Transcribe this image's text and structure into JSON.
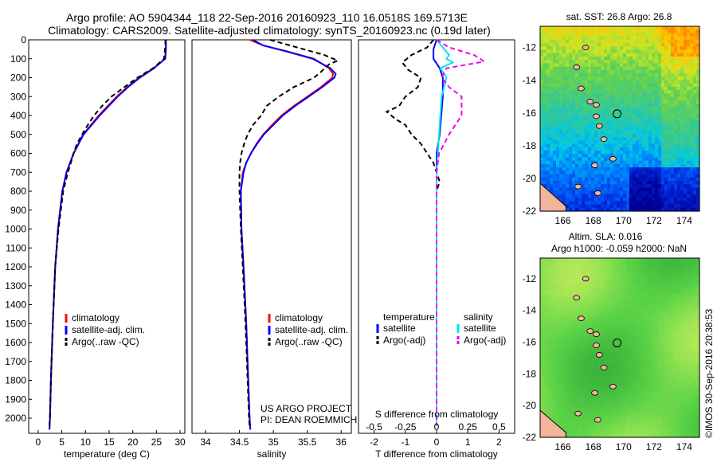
{
  "title": {
    "line1": "Argo profile: AO 5904344_118 22-Sep-2016 20160923_110 16.0518S 169.5713E",
    "line2": "Climatology: CARS2009. Satellite-adjusted climatology: synTS_20160923.nc (0.19d later)"
  },
  "colors": {
    "climatology": "#ff0000",
    "satellite": "#0000ff",
    "argo": "#000000",
    "sat_salinity": "#00e5ee",
    "argo_salinity": "#ee00ee",
    "land": "#f2b49a"
  },
  "chart_data": [
    {
      "type": "line",
      "id": "temperature",
      "xlabel": "temperature (deg C)",
      "ylabel": "",
      "xlim": [
        -2,
        31
      ],
      "ylim": [
        2080,
        0
      ],
      "xticks": [
        0,
        5,
        10,
        15,
        20,
        25,
        30
      ],
      "yticks": [
        0,
        100,
        200,
        300,
        400,
        500,
        600,
        700,
        800,
        900,
        1000,
        1100,
        1200,
        1300,
        1400,
        1500,
        1600,
        1700,
        1800,
        1900,
        2000
      ],
      "legend": [
        "climatology",
        "satellite-adj. clim.",
        "Argo(..raw -QC)"
      ],
      "series": [
        {
          "name": "climatology",
          "depth": [
            0,
            50,
            100,
            150,
            200,
            250,
            300,
            400,
            500,
            600,
            700,
            800,
            1000,
            1200,
            1500,
            1800,
            2000,
            2060
          ],
          "values": [
            27.0,
            27.0,
            26.9,
            24.4,
            21.3,
            18.8,
            16.6,
            12.8,
            9.5,
            7.5,
            6.0,
            5.1,
            4.2,
            3.6,
            3.1,
            2.7,
            2.5,
            2.4
          ]
        },
        {
          "name": "satellite-adj. clim.",
          "depth": [
            0,
            50,
            100,
            150,
            200,
            250,
            300,
            400,
            500,
            600,
            700,
            800,
            1000,
            1200,
            1500,
            1800,
            2000,
            2060
          ],
          "values": [
            27.0,
            27.0,
            26.8,
            24.5,
            21.5,
            19.0,
            16.8,
            13.0,
            9.6,
            7.5,
            6.0,
            5.1,
            4.2,
            3.6,
            3.1,
            2.7,
            2.5,
            2.4
          ]
        },
        {
          "name": "Argo(..raw -QC)",
          "depth": [
            0,
            30,
            100,
            150,
            200,
            250,
            300,
            350,
            400,
            450,
            500,
            550,
            600,
            650,
            700,
            800,
            1000,
            1200,
            1500,
            1800,
            2000,
            2040
          ],
          "values": [
            26.9,
            26.9,
            26.6,
            24.3,
            21.0,
            18.2,
            15.5,
            13.5,
            11.8,
            10.5,
            9.3,
            8.2,
            7.5,
            6.9,
            6.3,
            5.3,
            4.3,
            3.6,
            3.1,
            2.7,
            2.5,
            2.4
          ]
        }
      ]
    },
    {
      "type": "line",
      "id": "salinity",
      "xlabel": "salinity",
      "ylabel": "",
      "xlim": [
        33.8,
        36.15
      ],
      "ylim": [
        2080,
        0
      ],
      "xticks": [
        34,
        34.5,
        35,
        35.5,
        36
      ],
      "legend": [
        "climatology",
        "satellite-adj. clim.",
        "Argo(..raw -QC)"
      ],
      "annotation": [
        "US ARGO PROJECT",
        "PI: DEAN ROEMMICH"
      ],
      "series": [
        {
          "name": "climatology",
          "depth": [
            0,
            30,
            60,
            100,
            150,
            180,
            200,
            250,
            300,
            350,
            400,
            450,
            500,
            550,
            600,
            650,
            700,
            800,
            1000,
            1200,
            1500,
            1800,
            2000,
            2060
          ],
          "values": [
            34.65,
            34.85,
            35.2,
            35.6,
            35.82,
            35.88,
            35.87,
            35.7,
            35.5,
            35.3,
            35.12,
            34.98,
            34.85,
            34.75,
            34.67,
            34.6,
            34.55,
            34.52,
            34.53,
            34.56,
            34.6,
            34.63,
            34.65,
            34.66
          ]
        },
        {
          "name": "satellite-adj. clim.",
          "depth": [
            0,
            30,
            60,
            100,
            150,
            180,
            200,
            250,
            300,
            350,
            400,
            450,
            500,
            550,
            600,
            650,
            700,
            800,
            1000,
            1200,
            1500,
            1800,
            2000,
            2060
          ],
          "values": [
            34.7,
            34.85,
            35.18,
            35.58,
            35.84,
            35.92,
            35.9,
            35.72,
            35.52,
            35.32,
            35.14,
            35.0,
            34.86,
            34.76,
            34.67,
            34.6,
            34.56,
            34.52,
            34.53,
            34.56,
            34.6,
            34.63,
            34.65,
            34.66
          ]
        },
        {
          "name": "Argo(..raw -QC)",
          "depth": [
            0,
            40,
            80,
            110,
            130,
            170,
            200,
            250,
            300,
            350,
            400,
            450,
            500,
            550,
            600,
            650,
            700,
            800,
            1000,
            1200,
            1500,
            1800,
            2000,
            2040
          ],
          "values": [
            34.95,
            35.35,
            35.75,
            35.95,
            35.82,
            35.7,
            35.6,
            35.3,
            35.08,
            34.9,
            34.82,
            34.7,
            34.62,
            34.57,
            34.53,
            34.51,
            34.5,
            34.5,
            34.52,
            34.55,
            34.59,
            34.62,
            34.64,
            34.65
          ]
        }
      ]
    },
    {
      "type": "line",
      "id": "differences",
      "xlabel": "T difference from climatology",
      "x2label": "S difference from climatology",
      "xlim": [
        -2.5,
        2.5
      ],
      "x2lim": [
        -0.625,
        0.625
      ],
      "ylim": [
        2080,
        0
      ],
      "xticks": [
        -2,
        -1,
        0,
        1,
        2
      ],
      "x2ticks": [
        -0.5,
        -0.25,
        0,
        0.25,
        0.5
      ],
      "x2tick_labels": [
        "-0.5",
        "-0.25",
        "0",
        "0.25",
        "0.5"
      ],
      "legend_headers": [
        "temperature",
        "salinity"
      ],
      "legend": [
        "satellite",
        "Argo(-adj)",
        "satellite",
        "Argo(-adj)"
      ],
      "series": [
        {
          "name": "temperature satellite",
          "depth": [
            0,
            50,
            100,
            150,
            200,
            300,
            400,
            500,
            600,
            800,
            1000,
            1500,
            2000
          ],
          "values": [
            0.0,
            -0.1,
            -0.1,
            0.1,
            0.2,
            0.2,
            0.15,
            0.1,
            0.0,
            0.0,
            0.0,
            0.0,
            0.0
          ]
        },
        {
          "name": "temperature Argo(-adj)",
          "depth": [
            0,
            40,
            80,
            120,
            160,
            200,
            250,
            300,
            350,
            380,
            420,
            450,
            500,
            550,
            600,
            650,
            700,
            750,
            800,
            900,
            1000,
            1200,
            1500,
            1800,
            2000,
            2040
          ],
          "values": [
            -0.1,
            -0.3,
            -0.8,
            -1.1,
            -0.9,
            -0.5,
            -0.6,
            -1.0,
            -1.2,
            -1.6,
            -1.3,
            -1.0,
            -0.8,
            -0.5,
            -0.3,
            -0.1,
            0.0,
            0.1,
            0.0,
            0.0,
            0.0,
            0.0,
            0.0,
            0.0,
            0.0,
            0.0
          ]
        },
        {
          "name": "salinity satellite",
          "depth": [
            0,
            40,
            80,
            100,
            120,
            150,
            200,
            250,
            300,
            400,
            500,
            600,
            700,
            800,
            1000,
            1500,
            2000,
            2040
          ],
          "values": [
            0.0,
            0.05,
            0.1,
            0.08,
            0.13,
            0.03,
            0.08,
            0.06,
            0.04,
            0.03,
            0.02,
            0.01,
            0.0,
            0.0,
            0.0,
            0.0,
            0.0,
            0.0
          ]
        },
        {
          "name": "salinity Argo(-adj)",
          "depth": [
            0,
            40,
            80,
            100,
            115,
            130,
            150,
            200,
            250,
            300,
            400,
            500,
            600,
            700,
            800,
            1000,
            1500,
            2000,
            2040
          ],
          "values": [
            0.0,
            0.1,
            0.3,
            0.35,
            0.38,
            0.25,
            0.08,
            0.04,
            0.1,
            0.2,
            0.2,
            0.1,
            0.02,
            0.0,
            0.0,
            0.0,
            0.0,
            0.0,
            0.0
          ]
        }
      ]
    },
    {
      "type": "heatmap",
      "id": "sst-map",
      "title": "sat. SST: 26.8 Argo: 26.8",
      "xlim": [
        164.5,
        175
      ],
      "ylim": [
        -22,
        -10.7
      ],
      "xticks": [
        166,
        168,
        170,
        172,
        174
      ],
      "yticks": [
        -12,
        -14,
        -16,
        -18,
        -20,
        -22
      ],
      "argo_position": {
        "lon": 169.5713,
        "lat": -16.0518
      }
    },
    {
      "type": "heatmap",
      "id": "sla-map",
      "title": "Altim. SLA: 0.016",
      "subtitle": "Argo h1000: -0.059 h2000: NaN",
      "xlim": [
        164.5,
        175
      ],
      "ylim": [
        -22,
        -10.7
      ],
      "xticks": [
        166,
        168,
        170,
        172,
        174
      ],
      "yticks": [
        -12,
        -14,
        -16,
        -18,
        -20,
        -22
      ],
      "argo_position": {
        "lon": 169.5713,
        "lat": -16.0518
      }
    }
  ],
  "footer": "©IMOS 30-Sep-2016 20:38:53"
}
